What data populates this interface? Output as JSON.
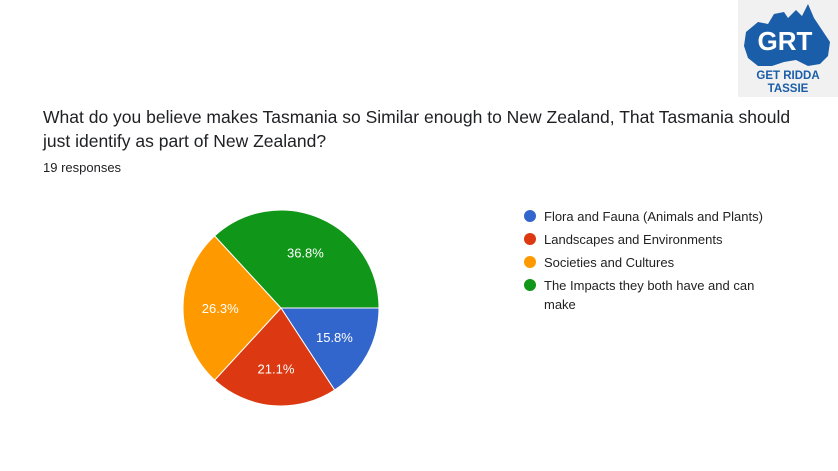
{
  "logo": {
    "text": "GRT",
    "subtitle_line1": "GET RIDDA",
    "subtitle_line2": "TASSIE",
    "color": "#1a5da8"
  },
  "question": "What do you believe makes Tasmania so Similar enough to New Zealand, That Tasmania should just identify as part of New Zealand?",
  "responses": "19 responses",
  "chart_data": {
    "type": "pie",
    "total": 19,
    "legend_position": "right",
    "start": "3 o'clock, clockwise",
    "slices": [
      {
        "label": "Flora and Fauna (Animals and Plants)",
        "count": 3,
        "percent": 15.8,
        "percent_label": "15.8%",
        "color": "#3366cc"
      },
      {
        "label": "Landscapes and Environments",
        "count": 4,
        "percent": 21.1,
        "percent_label": "21.1%",
        "color": "#dc3912"
      },
      {
        "label": "Societies and Cultures",
        "count": 5,
        "percent": 26.3,
        "percent_label": "26.3%",
        "color": "#ff9900"
      },
      {
        "label": "The Impacts they both have and can make",
        "count": 7,
        "percent": 36.8,
        "percent_label": "36.8%",
        "color": "#109618"
      }
    ]
  }
}
